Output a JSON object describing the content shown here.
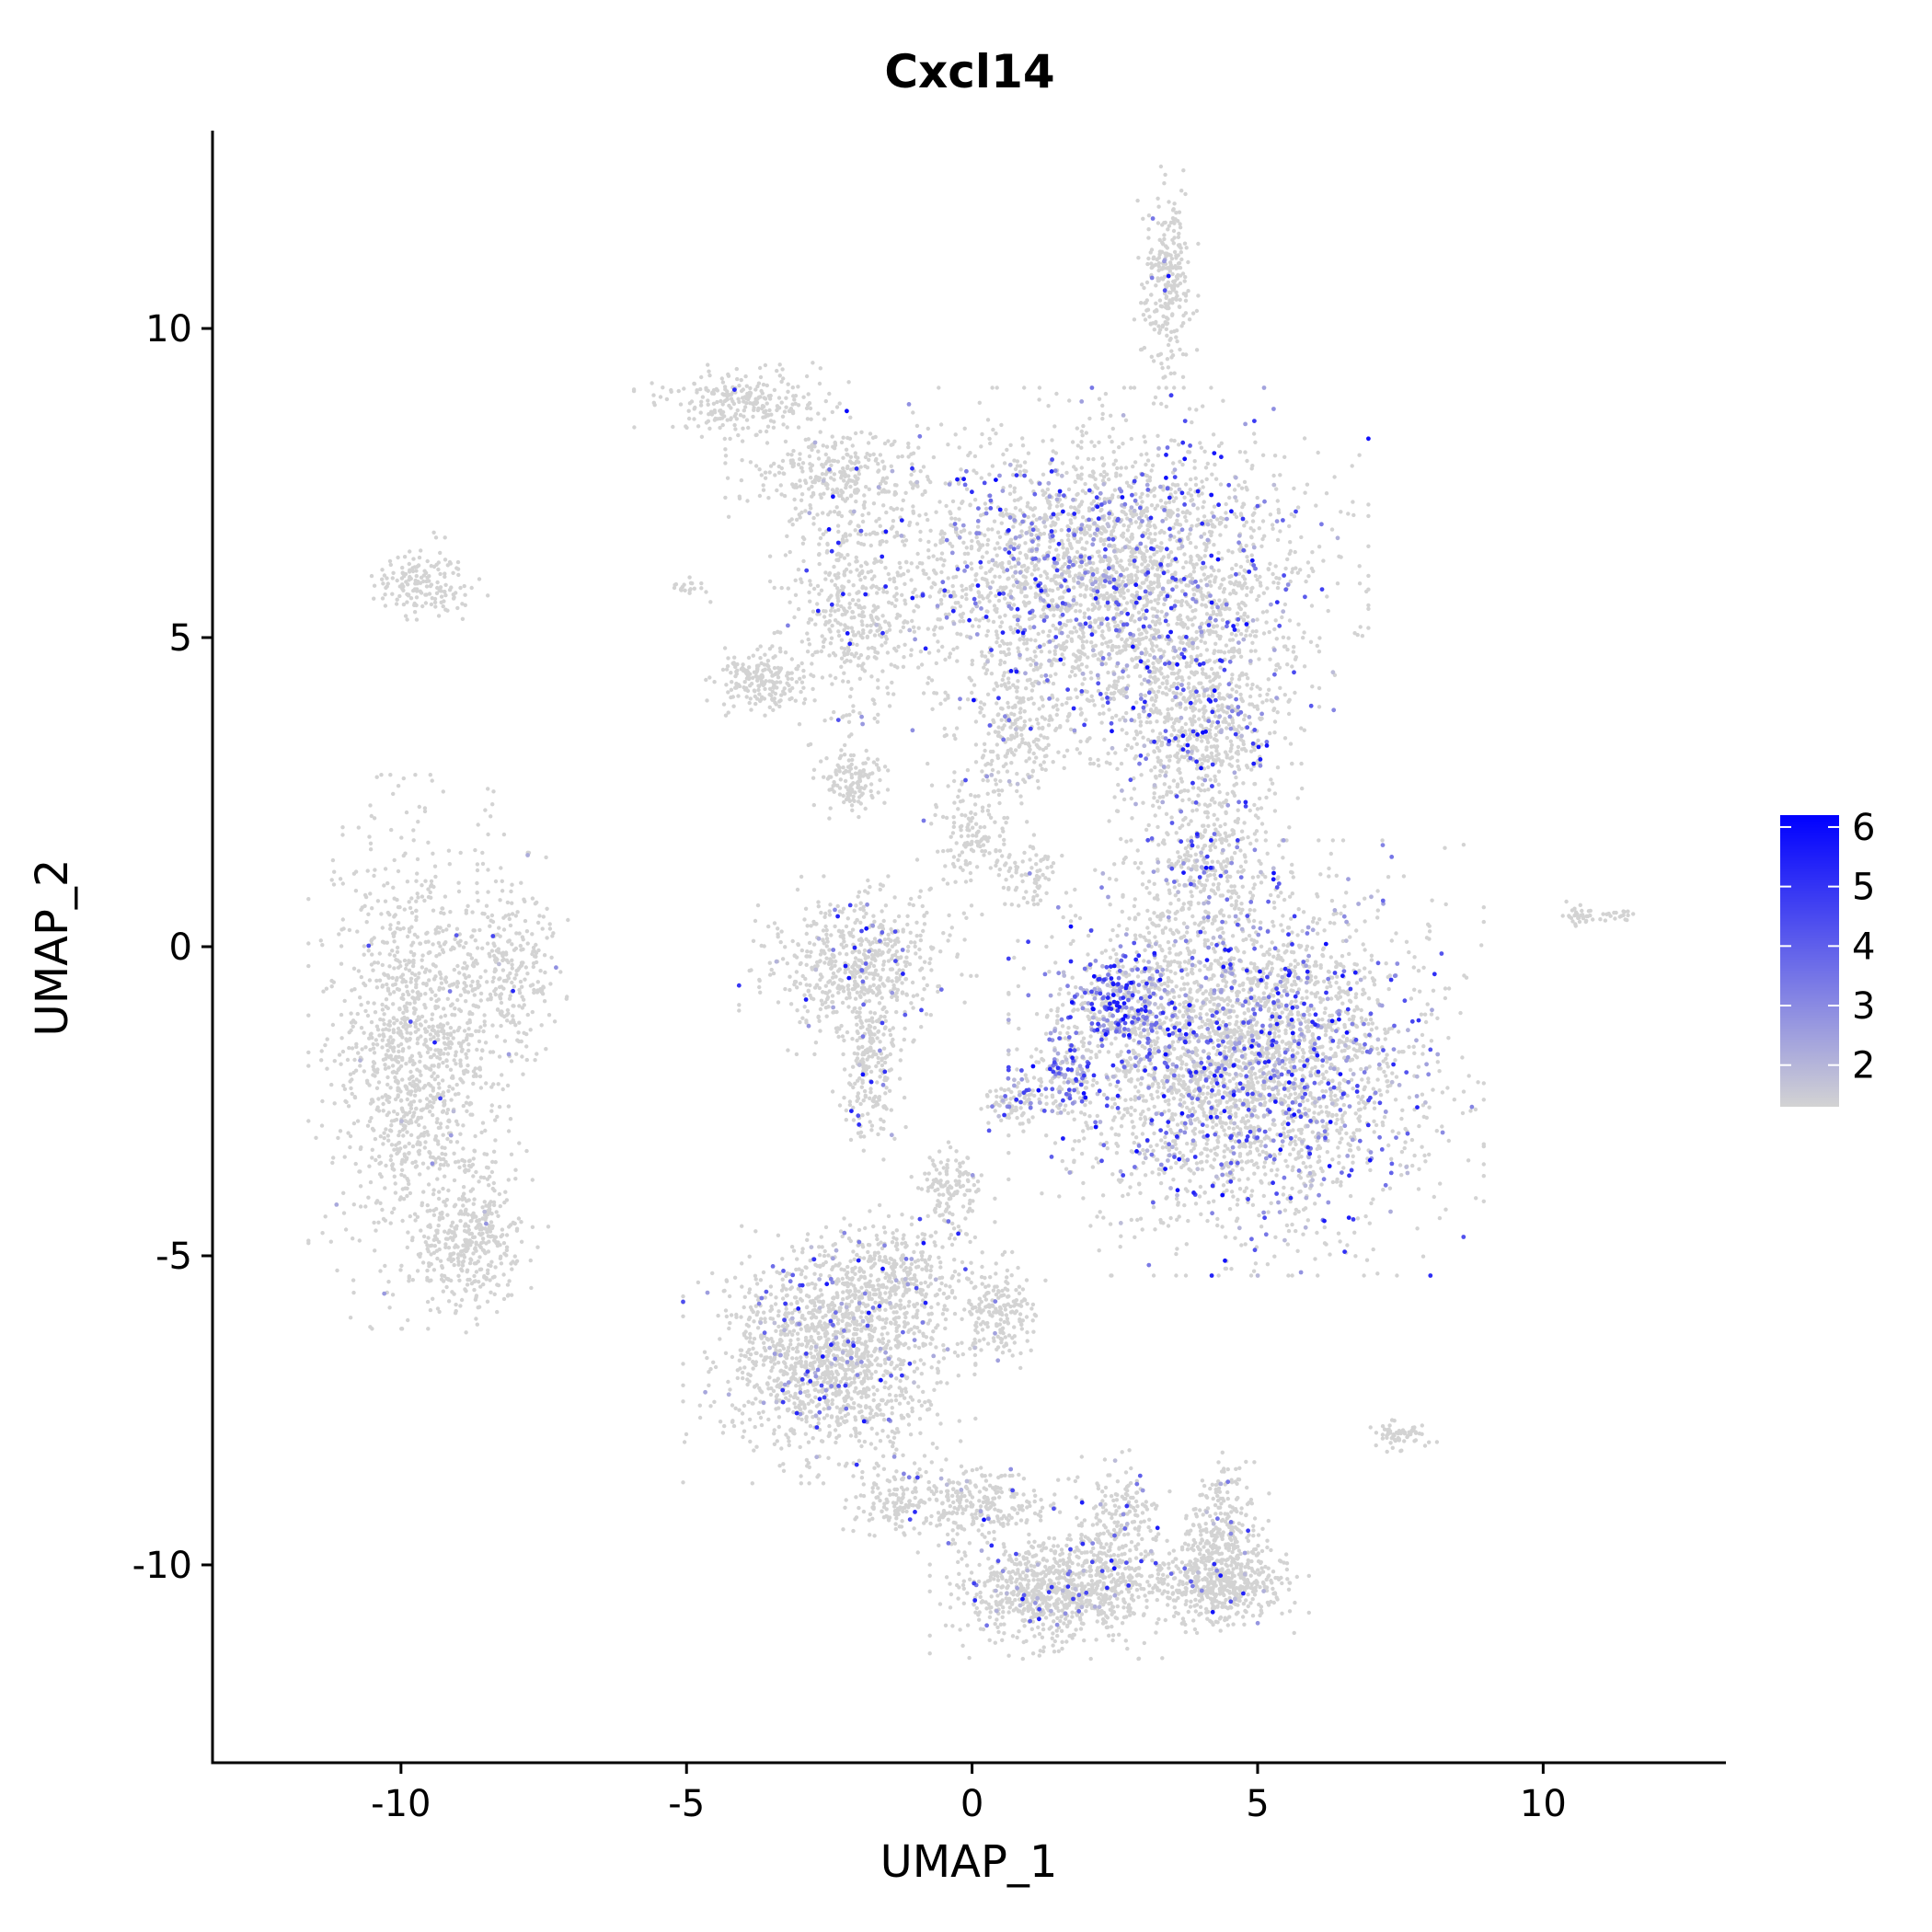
{
  "chart_data": {
    "type": "scatter",
    "title": "Cxcl14",
    "xlabel": "UMAP_1",
    "ylabel": "UMAP_2",
    "xlim": [
      -13.3,
      13.2
    ],
    "ylim": [
      -13.2,
      13.2
    ],
    "xticks": [
      -10,
      -5,
      0,
      5,
      10
    ],
    "yticks": [
      -10,
      -5,
      0,
      5,
      10
    ],
    "xtick_labels": [
      "-10",
      "-5",
      "0",
      "5",
      "10"
    ],
    "ytick_labels": [
      "-10",
      "-5",
      "0",
      "5",
      "10"
    ],
    "grid": false,
    "legend": {
      "type": "colorbar",
      "placement": "right",
      "min": 1.3,
      "max": 6.2,
      "ticks": [
        2,
        3,
        4,
        5,
        6
      ],
      "tick_labels": [
        "2",
        "3",
        "4",
        "5",
        "6"
      ],
      "low_color": "#d3d3d3",
      "high_color": "#0000ff"
    },
    "clusters": [
      {
        "cx": -9.6,
        "cy": 5.9,
        "rx": 0.7,
        "ry": 0.5,
        "n": 160,
        "expr": 0.0
      },
      {
        "cx": -9.7,
        "cy": -1.7,
        "rx": 1.2,
        "ry": 2.8,
        "n": 1300,
        "expr": 0.01
      },
      {
        "cx": -8.1,
        "cy": -0.4,
        "rx": 0.7,
        "ry": 1.2,
        "n": 260,
        "expr": 0.02
      },
      {
        "cx": -8.7,
        "cy": -4.8,
        "rx": 0.8,
        "ry": 0.9,
        "n": 350,
        "expr": 0.01
      },
      {
        "cx": -4.0,
        "cy": 8.8,
        "rx": 1.2,
        "ry": 0.45,
        "n": 260,
        "expr": 0.01
      },
      {
        "cx": -2.4,
        "cy": 7.6,
        "rx": 1.2,
        "ry": 0.6,
        "n": 300,
        "expr": 0.02
      },
      {
        "cx": -2.1,
        "cy": 5.5,
        "rx": 0.9,
        "ry": 1.4,
        "n": 400,
        "expr": 0.03
      },
      {
        "cx": -3.7,
        "cy": 4.3,
        "rx": 0.6,
        "ry": 0.35,
        "n": 200,
        "expr": 0.0
      },
      {
        "cx": -2.1,
        "cy": 2.7,
        "rx": 0.5,
        "ry": 0.4,
        "n": 130,
        "expr": 0.0
      },
      {
        "cx": -5.0,
        "cy": 5.8,
        "rx": 0.3,
        "ry": 0.15,
        "n": 20,
        "expr": 0.0
      },
      {
        "cx": 2.3,
        "cy": 6.0,
        "rx": 2.9,
        "ry": 1.9,
        "n": 2900,
        "expr": 0.18
      },
      {
        "cx": 4.0,
        "cy": 3.5,
        "rx": 1.3,
        "ry": 1.5,
        "n": 800,
        "expr": 0.15
      },
      {
        "cx": 4.0,
        "cy": 1.2,
        "rx": 1.0,
        "ry": 1.0,
        "n": 300,
        "expr": 0.12
      },
      {
        "cx": 3.4,
        "cy": 10.7,
        "rx": 0.35,
        "ry": 1.2,
        "n": 260,
        "expr": 0.02
      },
      {
        "cx": 0.8,
        "cy": 3.5,
        "rx": 0.8,
        "ry": 0.9,
        "n": 200,
        "expr": 0.05
      },
      {
        "cx": 1.0,
        "cy": 1.2,
        "rx": 0.5,
        "ry": 0.4,
        "n": 80,
        "expr": 0.03
      },
      {
        "cx": -2.0,
        "cy": -0.3,
        "rx": 1.3,
        "ry": 0.9,
        "n": 600,
        "expr": 0.05
      },
      {
        "cx": -1.8,
        "cy": -2.0,
        "rx": 0.4,
        "ry": 1.0,
        "n": 220,
        "expr": 0.05
      },
      {
        "cx": 0.0,
        "cy": 1.8,
        "rx": 0.6,
        "ry": 0.8,
        "n": 150,
        "expr": 0.03
      },
      {
        "cx": 4.8,
        "cy": -1.8,
        "rx": 2.6,
        "ry": 2.2,
        "n": 3400,
        "expr": 0.22
      },
      {
        "cx": 2.6,
        "cy": -0.9,
        "rx": 0.8,
        "ry": 0.6,
        "n": 300,
        "expr": 0.55
      },
      {
        "cx": 1.6,
        "cy": -2.0,
        "rx": 0.6,
        "ry": 0.5,
        "n": 150,
        "expr": 0.5
      },
      {
        "cx": 0.7,
        "cy": -2.5,
        "rx": 0.4,
        "ry": 0.3,
        "n": 80,
        "expr": 0.3
      },
      {
        "cx": 10.6,
        "cy": 0.5,
        "rx": 0.25,
        "ry": 0.15,
        "n": 30,
        "expr": 0.0
      },
      {
        "cx": 11.3,
        "cy": 0.5,
        "rx": 0.3,
        "ry": 0.1,
        "n": 20,
        "expr": 0.0
      },
      {
        "cx": -0.4,
        "cy": -4.0,
        "rx": 0.5,
        "ry": 0.6,
        "n": 140,
        "expr": 0.02
      },
      {
        "cx": -2.5,
        "cy": -6.6,
        "rx": 1.6,
        "ry": 1.3,
        "n": 1500,
        "expr": 0.07
      },
      {
        "cx": -1.4,
        "cy": -5.3,
        "rx": 1.0,
        "ry": 0.7,
        "n": 300,
        "expr": 0.05
      },
      {
        "cx": 0.5,
        "cy": -5.9,
        "rx": 0.6,
        "ry": 0.6,
        "n": 200,
        "expr": 0.02
      },
      {
        "cx": 1.5,
        "cy": -10.4,
        "rx": 1.4,
        "ry": 0.7,
        "n": 900,
        "expr": 0.06
      },
      {
        "cx": 4.3,
        "cy": -10.3,
        "rx": 1.0,
        "ry": 0.5,
        "n": 500,
        "expr": 0.03
      },
      {
        "cx": 4.4,
        "cy": -9.4,
        "rx": 0.5,
        "ry": 0.8,
        "n": 250,
        "expr": 0.04
      },
      {
        "cx": 0.0,
        "cy": -9.0,
        "rx": 1.2,
        "ry": 0.5,
        "n": 300,
        "expr": 0.05
      },
      {
        "cx": 2.6,
        "cy": -9.4,
        "rx": 0.6,
        "ry": 0.8,
        "n": 200,
        "expr": 0.05
      },
      {
        "cx": 7.5,
        "cy": -7.9,
        "rx": 0.4,
        "ry": 0.2,
        "n": 60,
        "expr": 0.0
      },
      {
        "cx": -1.5,
        "cy": -9.0,
        "rx": 0.6,
        "ry": 0.4,
        "n": 100,
        "expr": 0.03
      }
    ]
  }
}
